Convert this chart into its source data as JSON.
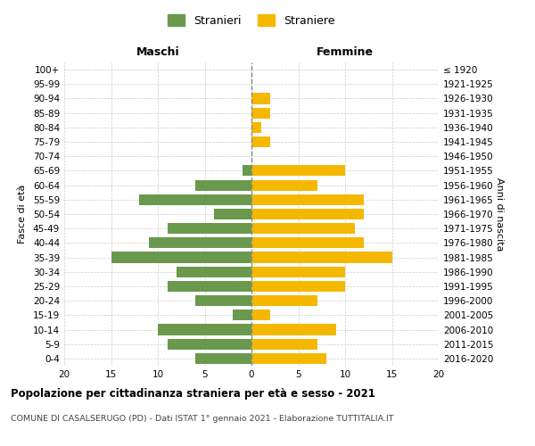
{
  "age_groups": [
    "0-4",
    "5-9",
    "10-14",
    "15-19",
    "20-24",
    "25-29",
    "30-34",
    "35-39",
    "40-44",
    "45-49",
    "50-54",
    "55-59",
    "60-64",
    "65-69",
    "70-74",
    "75-79",
    "80-84",
    "85-89",
    "90-94",
    "95-99",
    "100+"
  ],
  "birth_years": [
    "2016-2020",
    "2011-2015",
    "2006-2010",
    "2001-2005",
    "1996-2000",
    "1991-1995",
    "1986-1990",
    "1981-1985",
    "1976-1980",
    "1971-1975",
    "1966-1970",
    "1961-1965",
    "1956-1960",
    "1951-1955",
    "1946-1950",
    "1941-1945",
    "1936-1940",
    "1931-1935",
    "1926-1930",
    "1921-1925",
    "≤ 1920"
  ],
  "maschi": [
    6,
    9,
    10,
    2,
    6,
    9,
    8,
    15,
    11,
    9,
    4,
    12,
    6,
    1,
    0,
    0,
    0,
    0,
    0,
    0,
    0
  ],
  "femmine": [
    8,
    7,
    9,
    2,
    7,
    10,
    10,
    15,
    12,
    11,
    12,
    12,
    7,
    10,
    0,
    2,
    1,
    2,
    2,
    0,
    0
  ],
  "maschi_color": "#6a994e",
  "femmine_color": "#f5b800",
  "background_color": "#ffffff",
  "grid_color": "#cccccc",
  "title": "Popolazione per cittadinanza straniera per età e sesso - 2021",
  "subtitle": "COMUNE DI CASALSERUGO (PD) - Dati ISTAT 1° gennaio 2021 - Elaborazione TUTTITALIA.IT",
  "ylabel_left": "Fasce di età",
  "ylabel_right": "Anni di nascita",
  "xlabel_left": "Maschi",
  "xlabel_right": "Femmine",
  "legend_maschi": "Stranieri",
  "legend_femmine": "Straniere",
  "xlim": [
    -20,
    20
  ],
  "xticks": [
    -20,
    -15,
    -10,
    -5,
    0,
    5,
    10,
    15,
    20
  ],
  "xticklabels": [
    "20",
    "15",
    "10",
    "5",
    "0",
    "5",
    "10",
    "15",
    "20"
  ]
}
